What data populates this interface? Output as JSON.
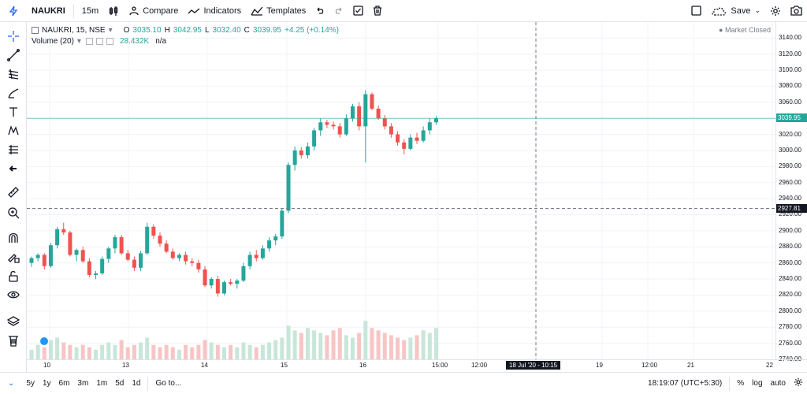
{
  "toolbar": {
    "symbol": "NAUKRI",
    "interval": "15m",
    "compare": "Compare",
    "indicators": "Indicators",
    "templates": "Templates",
    "save": "Save"
  },
  "legend": {
    "title": "NAUKRI, 15, NSE",
    "open_label": "O",
    "open": "3035.10",
    "high_label": "H",
    "high": "3042.95",
    "low_label": "L",
    "low": "3032.40",
    "close_label": "C",
    "close": "3039.95",
    "change": "+4.25 (+0.14%)",
    "volume_title": "Volume (20)",
    "volume_value": "28.432K",
    "volume_ma": "n/a",
    "market_status": "Market Closed"
  },
  "price_axis": {
    "ticks": [
      "3140.00",
      "3120.00",
      "3100.00",
      "3080.00",
      "3060.00",
      "3040.00",
      "3020.00",
      "3000.00",
      "2980.00",
      "2960.00",
      "2940.00",
      "2920.00",
      "2900.00",
      "2880.00",
      "2860.00",
      "2840.00",
      "2820.00",
      "2800.00",
      "2780.00",
      "2760.00",
      "2740.00"
    ],
    "last_price": "3039.95",
    "crosshair_price": "2927.81"
  },
  "time_axis": {
    "ticks": [
      "10",
      "13",
      "14",
      "15",
      "16",
      "15:00",
      "12:00",
      "19",
      "12:00",
      "21",
      "22"
    ],
    "crosshair_time": "18 Jul '20 - 10:15"
  },
  "bottombar": {
    "ranges": [
      "5y",
      "1y",
      "6m",
      "3m",
      "1m",
      "5d",
      "1d"
    ],
    "goto": "Go to...",
    "clock": "18:19:07 (UTC+5:30)",
    "percent": "%",
    "log": "log",
    "auto": "auto"
  },
  "chart_data": {
    "type": "candlestick",
    "series_name": "NAUKRI, 15, NSE",
    "ylim": [
      2740,
      3150
    ],
    "candles": [
      [
        2860,
        2868,
        2855,
        2866
      ],
      [
        2866,
        2872,
        2862,
        2870
      ],
      [
        2870,
        2872,
        2852,
        2856
      ],
      [
        2856,
        2885,
        2854,
        2882
      ],
      [
        2882,
        2905,
        2878,
        2902
      ],
      [
        2902,
        2910,
        2895,
        2898
      ],
      [
        2898,
        2900,
        2868,
        2870
      ],
      [
        2870,
        2878,
        2862,
        2876
      ],
      [
        2876,
        2880,
        2860,
        2862
      ],
      [
        2862,
        2866,
        2842,
        2845
      ],
      [
        2845,
        2850,
        2840,
        2847
      ],
      [
        2847,
        2868,
        2845,
        2865
      ],
      [
        2865,
        2880,
        2860,
        2878
      ],
      [
        2878,
        2895,
        2872,
        2892
      ],
      [
        2892,
        2895,
        2870,
        2872
      ],
      [
        2872,
        2876,
        2862,
        2864
      ],
      [
        2864,
        2868,
        2850,
        2854
      ],
      [
        2854,
        2875,
        2850,
        2872
      ],
      [
        2872,
        2910,
        2870,
        2905
      ],
      [
        2905,
        2908,
        2890,
        2894
      ],
      [
        2894,
        2898,
        2880,
        2884
      ],
      [
        2884,
        2888,
        2872,
        2874
      ],
      [
        2874,
        2878,
        2864,
        2866
      ],
      [
        2866,
        2872,
        2862,
        2870
      ],
      [
        2870,
        2874,
        2858,
        2862
      ],
      [
        2862,
        2866,
        2856,
        2860
      ],
      [
        2860,
        2864,
        2848,
        2852
      ],
      [
        2852,
        2856,
        2830,
        2832
      ],
      [
        2832,
        2842,
        2828,
        2840
      ],
      [
        2840,
        2844,
        2818,
        2822
      ],
      [
        2822,
        2838,
        2820,
        2836
      ],
      [
        2836,
        2840,
        2832,
        2834
      ],
      [
        2834,
        2840,
        2828,
        2838
      ],
      [
        2838,
        2860,
        2836,
        2856
      ],
      [
        2856,
        2874,
        2852,
        2870
      ],
      [
        2870,
        2876,
        2862,
        2866
      ],
      [
        2866,
        2882,
        2864,
        2878
      ],
      [
        2878,
        2892,
        2874,
        2888
      ],
      [
        2888,
        2896,
        2882,
        2893
      ],
      [
        2893,
        2928,
        2890,
        2925
      ],
      [
        2925,
        2985,
        2922,
        2982
      ],
      [
        2982,
        3005,
        2975,
        3000
      ],
      [
        3000,
        3004,
        2990,
        2994
      ],
      [
        2994,
        3010,
        2990,
        3005
      ],
      [
        3005,
        3028,
        3000,
        3025
      ],
      [
        3025,
        3040,
        3018,
        3035
      ],
      [
        3035,
        3038,
        3028,
        3032
      ],
      [
        3032,
        3036,
        3026,
        3030
      ],
      [
        3030,
        3034,
        3016,
        3020
      ],
      [
        3020,
        3045,
        3018,
        3040
      ],
      [
        3040,
        3058,
        3036,
        3055
      ],
      [
        3055,
        3060,
        3025,
        3030
      ],
      [
        3030,
        3075,
        2985,
        3070
      ],
      [
        3070,
        3072,
        3050,
        3052
      ],
      [
        3052,
        3056,
        3038,
        3040
      ],
      [
        3040,
        3044,
        3026,
        3030
      ],
      [
        3030,
        3034,
        3016,
        3020
      ],
      [
        3020,
        3024,
        3006,
        3010
      ],
      [
        3010,
        3014,
        2995,
        3002
      ],
      [
        3002,
        3020,
        3000,
        3016
      ],
      [
        3016,
        3022,
        3008,
        3012
      ],
      [
        3012,
        3030,
        3010,
        3025
      ],
      [
        3025,
        3040,
        3020,
        3035
      ],
      [
        3035,
        3043,
        3032,
        3040
      ]
    ],
    "volumes": [
      4,
      6,
      5,
      8,
      9,
      7,
      6,
      5,
      6,
      5,
      4,
      6,
      7,
      6,
      8,
      5,
      6,
      7,
      9,
      6,
      5,
      6,
      5,
      4,
      6,
      5,
      6,
      8,
      7,
      6,
      5,
      6,
      5,
      7,
      6,
      5,
      6,
      7,
      8,
      9,
      14,
      12,
      11,
      13,
      12,
      11,
      10,
      12,
      13,
      10,
      9,
      11,
      16,
      13,
      12,
      11,
      10,
      9,
      8,
      9,
      10,
      12,
      11,
      13
    ],
    "vol_max": 36
  }
}
